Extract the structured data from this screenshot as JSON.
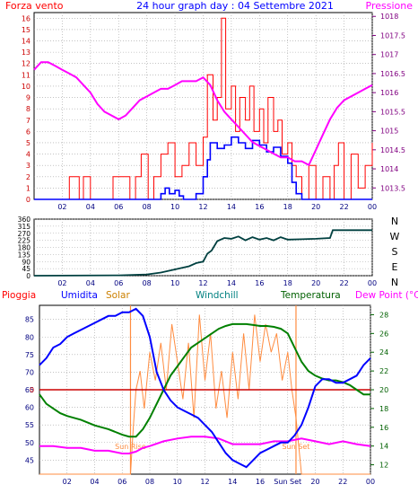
{
  "chart_data": [
    {
      "id": "wind",
      "type": "line",
      "title": "24 hour graph day : 04 Settembre 2021",
      "x_tick_labels": [
        "02",
        "04",
        "06",
        "08",
        "10",
        "12",
        "14",
        "16",
        "18",
        "20",
        "22",
        "00"
      ],
      "x_range": [
        0,
        24
      ],
      "left_axis": {
        "label": "Forza vento",
        "range": [
          0,
          16.5
        ],
        "ticks": [
          0,
          1,
          2,
          3,
          4,
          5,
          6,
          7,
          8,
          9,
          10,
          11,
          12,
          13,
          14,
          15,
          16
        ]
      },
      "right_axis": {
        "label": "Pressione",
        "range": [
          1013.2,
          1018.1
        ],
        "tick_labels": [
          "1013.5",
          "1014",
          "1014.5",
          "1015",
          "1015.5",
          "1016",
          "1016.5",
          "1017",
          "1017.5",
          "1018"
        ]
      },
      "series": [
        {
          "name": "Pressione",
          "axis": "right",
          "color": "#ff00ff",
          "x": [
            0,
            0.5,
            1,
            1.5,
            2,
            2.5,
            3,
            3.5,
            4,
            4.5,
            5,
            5.5,
            6,
            6.5,
            7,
            7.5,
            8,
            8.5,
            9,
            9.5,
            10,
            10.5,
            11,
            11.5,
            12,
            12.5,
            13,
            13.5,
            14,
            14.5,
            15,
            15.5,
            16,
            16.5,
            17,
            17.5,
            18,
            18.5,
            19,
            19.5,
            20,
            20.5,
            21,
            21.5,
            22,
            22.5,
            23,
            23.5,
            24
          ],
          "y": [
            1016.6,
            1016.8,
            1016.8,
            1016.7,
            1016.6,
            1016.5,
            1016.4,
            1016.2,
            1016.0,
            1015.7,
            1015.5,
            1015.4,
            1015.3,
            1015.4,
            1015.6,
            1015.8,
            1015.9,
            1016.0,
            1016.1,
            1016.1,
            1016.2,
            1016.3,
            1016.3,
            1016.3,
            1016.4,
            1016.2,
            1015.8,
            1015.5,
            1015.3,
            1015.1,
            1014.9,
            1014.7,
            1014.6,
            1014.5,
            1014.4,
            1014.3,
            1014.3,
            1014.2,
            1014.2,
            1014.1,
            1014.5,
            1014.9,
            1015.3,
            1015.6,
            1015.8,
            1015.9,
            1016.0,
            1016.1,
            1016.2
          ]
        },
        {
          "name": "Velocita media",
          "axis": "left",
          "color": "#0000ff",
          "x": [
            0,
            8.5,
            9,
            9.3,
            9.6,
            10,
            10.3,
            10.6,
            11,
            11.5,
            12,
            12.3,
            12.5,
            13,
            13.5,
            14,
            14.5,
            15,
            15.5,
            16,
            16.5,
            17,
            17.5,
            18,
            18.3,
            18.6,
            19,
            20,
            24
          ],
          "y": [
            0,
            0,
            0.5,
            1,
            0.5,
            0.8,
            0.3,
            0,
            0,
            0.5,
            2,
            3.5,
            5,
            4.5,
            4.8,
            5.5,
            5,
            4.5,
            5.2,
            4.8,
            4.2,
            4.6,
            3.8,
            3.2,
            1.5,
            0.5,
            0,
            0,
            0
          ]
        },
        {
          "name": "Raffica",
          "axis": "left",
          "color": "#ff0000",
          "x": [
            0,
            2,
            2.5,
            3.2,
            3.5,
            4,
            5.3,
            5.6,
            6.8,
            7.2,
            7.6,
            8.1,
            8.5,
            9,
            9.5,
            10,
            10.5,
            11,
            11.5,
            12,
            12.3,
            12.7,
            13,
            13.3,
            13.6,
            14,
            14.3,
            14.6,
            15,
            15.3,
            15.6,
            16,
            16.3,
            16.6,
            17,
            17.3,
            17.6,
            18,
            18.3,
            18.6,
            19,
            19.5,
            20,
            20.5,
            21,
            21.3,
            21.6,
            22,
            22.5,
            23,
            23.5,
            24
          ],
          "y": [
            0,
            0,
            2,
            0,
            2,
            0,
            0,
            2,
            0,
            2,
            4,
            0,
            2,
            4,
            5,
            2,
            3,
            5,
            3,
            5.5,
            11,
            7,
            9,
            16,
            8,
            10,
            6,
            9,
            7,
            10,
            6,
            8,
            5,
            9,
            6,
            7,
            4,
            5,
            3,
            2,
            0,
            3,
            0,
            2,
            0,
            3,
            5,
            0,
            4,
            1,
            3,
            5
          ]
        }
      ]
    },
    {
      "id": "direction",
      "type": "line",
      "x_tick_labels": [
        "02",
        "04",
        "06",
        "08",
        "10",
        "12",
        "14",
        "16",
        "18",
        "20",
        "22",
        "00"
      ],
      "x_range": [
        0,
        24
      ],
      "left_axis": {
        "range": [
          0,
          360
        ],
        "ticks": [
          0,
          45,
          90,
          135,
          180,
          225,
          270,
          315,
          360
        ]
      },
      "right_tick_labels": [
        "N",
        "W",
        "S",
        "E",
        "N"
      ],
      "series": [
        {
          "name": "Direzione",
          "color": "#004040",
          "x": [
            0,
            6,
            8,
            9,
            10,
            11,
            11.5,
            12,
            12.3,
            12.6,
            13,
            13.5,
            14,
            14.5,
            15,
            15.5,
            16,
            16.5,
            17,
            17.5,
            18,
            19,
            20,
            21,
            21.2,
            22,
            24
          ],
          "y": [
            0,
            2,
            8,
            20,
            40,
            60,
            80,
            90,
            140,
            160,
            220,
            240,
            235,
            250,
            225,
            245,
            230,
            240,
            225,
            245,
            230,
            232,
            235,
            240,
            290,
            290,
            290
          ]
        }
      ]
    },
    {
      "id": "humidity-temp",
      "type": "line",
      "header": [
        "Pioggia",
        "Umidita",
        "Solar",
        "Windchill",
        "Temperatura",
        "Dew Point (°C)"
      ],
      "x_tick_labels": [
        "02",
        "04",
        "06",
        "08",
        "10",
        "12",
        "14",
        "16",
        "Sun Set",
        "20",
        "22",
        "00"
      ],
      "x_range": [
        0,
        24
      ],
      "left_axis": {
        "range": [
          41,
          89
        ],
        "ticks": [
          45,
          50,
          55,
          60,
          65,
          70,
          75,
          80,
          85
        ]
      },
      "right_axis": {
        "range": [
          11,
          29
        ],
        "ticks": [
          12,
          14,
          16,
          18,
          20,
          22,
          24,
          26,
          28
        ]
      },
      "rain_zero_label": "0",
      "annotations": [
        {
          "text": "Sun Rise",
          "x": 6.6
        },
        {
          "text": "Sun Set",
          "x": 18.6
        }
      ],
      "series": [
        {
          "name": "Umidita",
          "axis": "left",
          "color": "#0000ff",
          "x": [
            0,
            0.5,
            1,
            1.5,
            2,
            2.5,
            3,
            3.5,
            4,
            4.5,
            5,
            5.5,
            6,
            6.5,
            7,
            7.5,
            8,
            8.5,
            9,
            9.5,
            10,
            10.5,
            11,
            11.5,
            12,
            12.5,
            13,
            13.5,
            14,
            14.5,
            15,
            15.5,
            16,
            16.5,
            17,
            17.5,
            18,
            18.5,
            19,
            19.5,
            20,
            20.5,
            21,
            21.5,
            22,
            22.5,
            23,
            23.5,
            24
          ],
          "y": [
            72,
            74,
            77,
            78,
            80,
            81,
            82,
            83,
            84,
            85,
            86,
            86,
            87,
            87,
            88,
            86,
            80,
            70,
            65,
            62,
            60,
            59,
            58,
            57,
            55,
            53,
            50,
            47,
            45,
            44,
            43,
            45,
            47,
            48,
            49,
            50,
            50,
            52,
            55,
            60,
            66,
            68,
            68,
            67,
            67,
            68,
            69,
            72,
            74
          ]
        },
        {
          "name": "Temperatura",
          "axis": "right",
          "color": "#008000",
          "x": [
            0,
            0.5,
            1,
            1.5,
            2,
            2.5,
            3,
            3.5,
            4,
            4.5,
            5,
            5.5,
            6,
            6.5,
            7,
            7.5,
            8,
            8.5,
            9,
            9.5,
            10,
            10.5,
            11,
            11.5,
            12,
            12.5,
            13,
            13.5,
            14,
            14.5,
            15,
            15.5,
            16,
            16.5,
            17,
            17.5,
            18,
            18.5,
            19,
            19.5,
            20,
            20.5,
            21,
            21.5,
            22,
            22.5,
            23,
            23.5,
            24
          ],
          "y": [
            19.5,
            18.5,
            18,
            17.5,
            17.2,
            17,
            16.8,
            16.5,
            16.2,
            16,
            15.8,
            15.5,
            15.2,
            15,
            15,
            15.8,
            17,
            18.5,
            20,
            21.5,
            22.5,
            23.5,
            24.5,
            25,
            25.5,
            26,
            26.5,
            26.8,
            27,
            27,
            27,
            26.9,
            26.8,
            26.8,
            26.7,
            26.5,
            26,
            24.5,
            23,
            22,
            21.5,
            21.2,
            21,
            21,
            20.8,
            20.5,
            20,
            19.5,
            19.5
          ]
        },
        {
          "name": "Dew Point",
          "axis": "right",
          "color": "#ff00ff",
          "x": [
            0,
            1,
            2,
            3,
            4,
            5,
            6,
            6.5,
            7,
            7.5,
            8,
            9,
            10,
            11,
            12,
            13,
            14,
            15,
            16,
            17,
            18,
            19,
            20,
            21,
            22,
            23,
            24
          ],
          "y": [
            14,
            14,
            13.8,
            13.8,
            13.5,
            13.5,
            13.2,
            13.2,
            13.4,
            13.8,
            14,
            14.5,
            14.8,
            15,
            15,
            14.8,
            14.2,
            14.2,
            14.2,
            14.5,
            14.5,
            14.8,
            14.5,
            14.2,
            14.5,
            14.2,
            14
          ]
        },
        {
          "name": "Solar",
          "axis": "right",
          "color": "#ff8c40",
          "x": [
            0,
            6.4,
            6.6,
            6.8,
            7,
            7.3,
            7.6,
            8,
            8.4,
            8.8,
            9.2,
            9.6,
            10,
            10.4,
            10.8,
            11.2,
            11.6,
            12,
            12.4,
            12.8,
            13.2,
            13.6,
            14,
            14.4,
            14.8,
            15.2,
            15.6,
            16,
            16.4,
            16.8,
            17.2,
            17.6,
            18,
            18.3,
            18.6,
            19,
            20,
            24
          ],
          "y": [
            11,
            11,
            11,
            16,
            20,
            22,
            18,
            24,
            21,
            25,
            20,
            27,
            23,
            19,
            25,
            17,
            28,
            21,
            26,
            18,
            22,
            17,
            24,
            19,
            26,
            20,
            28,
            23,
            27,
            24,
            26,
            21,
            24,
            20,
            17,
            11,
            11,
            11
          ]
        },
        {
          "name": "Pioggia",
          "axis": "right",
          "color": "#cc0000",
          "x": [
            0,
            24
          ],
          "y": [
            20,
            20
          ]
        }
      ]
    }
  ],
  "colors": {
    "forza_vento": "#ff0000",
    "pressione": "#ff00ff",
    "axis_left": "#cc0000",
    "axis_right_top": "#800080",
    "title": "#0000ff",
    "pioggia": "#ff0000",
    "umidita": "#0000ff",
    "solar": "#cc8000",
    "windchill": "#008080",
    "temperatura": "#006000",
    "dew_point": "#ff00ff",
    "direction_axis": "#000000",
    "pressure_axis_ticks": "#800080",
    "temp_axis_ticks": "#006000"
  }
}
